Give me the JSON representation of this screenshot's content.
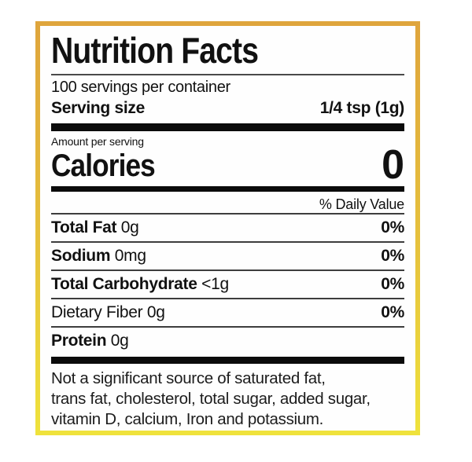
{
  "label": {
    "title": "Nutrition Facts",
    "servings_per_container": "100 servings per container",
    "serving_size": {
      "label": "Serving size",
      "value": "1/4 tsp (1g)"
    },
    "amount_per_serving": "Amount per serving",
    "calories": {
      "label": "Calories",
      "value": "0"
    },
    "daily_value_header": "% Daily Value",
    "nutrients": [
      {
        "name": "Total Fat",
        "amount": "0g",
        "dv": "0%"
      },
      {
        "name": "Sodium",
        "amount": "0mg",
        "dv": "0%"
      },
      {
        "name": "Total Carbohydrate",
        "amount": "<1g",
        "dv": "0%"
      },
      {
        "name": "Dietary Fiber",
        "amount": "0g",
        "dv": "0%"
      },
      {
        "name": "Protein",
        "amount": "0g",
        "dv": ""
      }
    ],
    "footnote_lines": [
      "Not a significant source of saturated fat,",
      "trans fat, cholesterol, total sugar, added sugar,",
      "vitamin D, calcium, Iron and potassium."
    ],
    "colors": {
      "border_top": "#dfa53c",
      "border_bottom": "#efe23c",
      "text": "#111111",
      "background": "#ffffff"
    }
  }
}
